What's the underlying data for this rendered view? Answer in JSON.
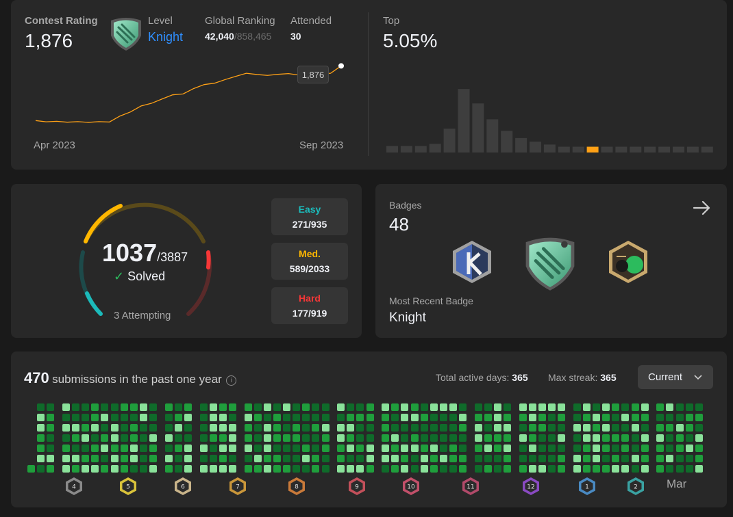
{
  "contest": {
    "rating_label": "Contest Rating",
    "rating_value": "1,876",
    "level_label": "Level",
    "level_value": "Knight",
    "global_ranking_label": "Global Ranking",
    "global_ranking_value": "42,040",
    "global_ranking_total": "/858,465",
    "attended_label": "Attended",
    "attended_value": "30",
    "top_label": "Top",
    "top_value": "5.05%",
    "tooltip_value": "1,876",
    "x_start_label": "Apr 2023",
    "x_end_label": "Sep 2023",
    "accent_color": "#ffa116"
  },
  "chart_data": [
    {
      "type": "line",
      "title": "",
      "x": [
        "Apr 2023",
        "",
        "",
        "",
        "",
        "",
        "",
        "",
        "",
        "",
        "",
        "",
        "",
        "",
        "",
        "",
        "",
        "",
        "",
        "",
        "",
        "",
        "",
        "",
        "",
        "",
        "",
        "",
        "",
        "Sep 2023"
      ],
      "values": [
        1572,
        1565,
        1568,
        1563,
        1566,
        1562,
        1566,
        1564,
        1597,
        1620,
        1653,
        1668,
        1692,
        1715,
        1720,
        1750,
        1772,
        1780,
        1800,
        1818,
        1835,
        1828,
        1823,
        1829,
        1833,
        1825,
        1830,
        1828,
        1835,
        1876
      ],
      "ylim": [
        1520,
        1900
      ]
    },
    {
      "type": "bar",
      "title": "",
      "values": [
        9,
        9,
        9,
        12,
        33,
        88,
        68,
        46,
        30,
        20,
        15,
        11,
        8,
        8,
        8,
        8,
        8,
        8,
        8,
        8,
        8,
        8,
        8
      ],
      "highlight_index": 14,
      "highlight_color": "#ffa116",
      "bar_color": "#3e3e3e"
    }
  ],
  "solved": {
    "solved_count": "1037",
    "total": "/3887",
    "solved_label": "Solved",
    "attempting": "3 Attempting",
    "solved_fraction": 0.267,
    "easy_label": "Easy",
    "easy_count": "271/935",
    "easy_color": "#1cbaba",
    "medium_label": "Med.",
    "medium_count": "589/2033",
    "medium_color": "#ffb700",
    "hard_label": "Hard",
    "hard_count": "177/919",
    "hard_color": "#f63737"
  },
  "badges": {
    "label": "Badges",
    "count": "48",
    "recent_label": "Most Recent Badge",
    "recent_value": "Knight"
  },
  "submissions": {
    "count": "470",
    "label": "submissions in the past one year",
    "active_days_label": "Total active days:",
    "active_days_value": "365",
    "max_streak_label": "Max streak:",
    "max_streak_value": "365",
    "dropdown_value": "Current",
    "month_icons": [
      "4",
      "5",
      "6",
      "7",
      "8",
      "9",
      "10",
      "11",
      "12",
      "1",
      "2"
    ],
    "month_icon_colors": [
      "#8a8a8a",
      "#d9c23a",
      "#c9b48a",
      "#c9963a",
      "#c97a3a",
      "#c2505a",
      "#c2506a",
      "#b24a6a",
      "#8a4ac2",
      "#4a8ac2",
      "#3aa2a2"
    ],
    "last_month_label": "Mar"
  }
}
